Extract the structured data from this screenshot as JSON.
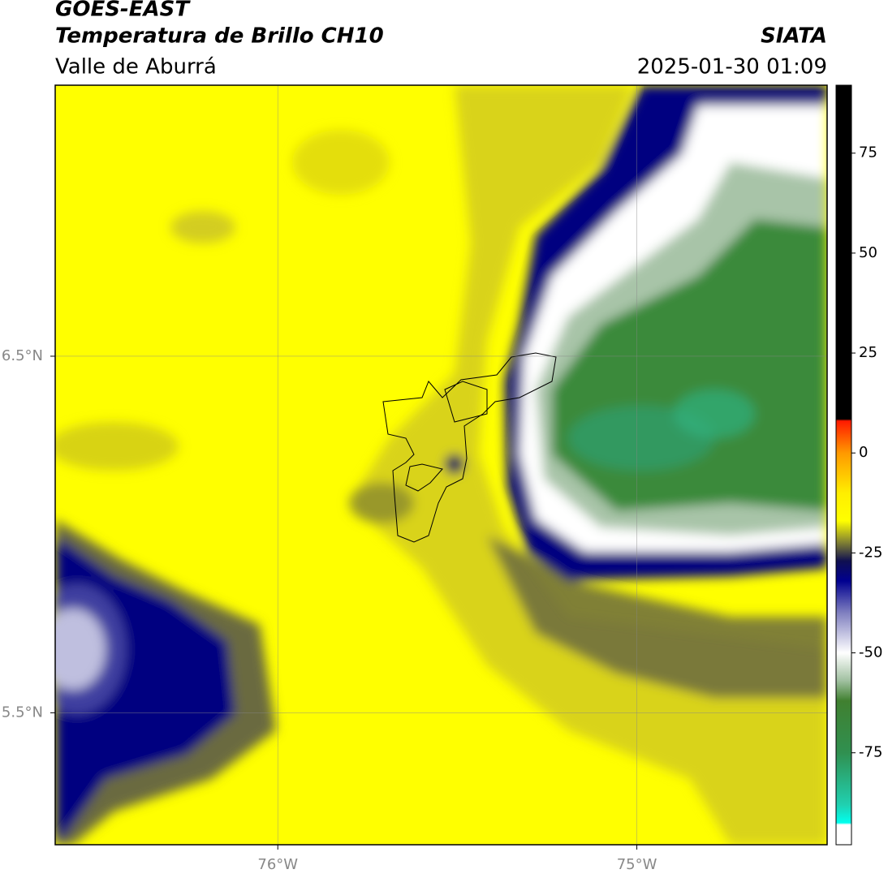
{
  "header": {
    "title": "GOES-EAST",
    "subtitle": "Temperatura de Brillo CH10",
    "region": "Valle de Aburrá",
    "source": "SIATA",
    "timestamp": "2025-01-30 01:09"
  },
  "map": {
    "xlim": [
      -76.62,
      -74.47
    ],
    "ylim": [
      5.13,
      7.26
    ],
    "xticks": [
      {
        "value": -76,
        "label": "76°W"
      },
      {
        "value": -75,
        "label": "75°W"
      }
    ],
    "yticks": [
      {
        "value": 6.5,
        "label": "6.5°N"
      },
      {
        "value": 5.5,
        "label": "5.5°N"
      }
    ],
    "grid": true
  },
  "colorbar": {
    "lim": [
      -98,
      92
    ],
    "ticks": [
      75,
      50,
      25,
      0,
      -25,
      -50,
      -75
    ],
    "stops": [
      {
        "value": 92,
        "color": "#000000"
      },
      {
        "value": 8.5,
        "color": "#000000"
      },
      {
        "value": 8,
        "color": "#ff1a00"
      },
      {
        "value": 0,
        "color": "#ff9900"
      },
      {
        "value": -10,
        "color": "#ffee00"
      },
      {
        "value": -17,
        "color": "#ffff00"
      },
      {
        "value": -22,
        "color": "#8a8a30"
      },
      {
        "value": -27,
        "color": "#101050"
      },
      {
        "value": -32,
        "color": "#000090"
      },
      {
        "value": -40,
        "color": "#8080c0"
      },
      {
        "value": -50,
        "color": "#ffffff"
      },
      {
        "value": -57,
        "color": "#a0c0a0"
      },
      {
        "value": -62,
        "color": "#408030"
      },
      {
        "value": -75,
        "color": "#309050"
      },
      {
        "value": -88,
        "color": "#20d0b0"
      },
      {
        "value": -92.5,
        "color": "#00ffee"
      },
      {
        "value": -93,
        "color": "#ffffff"
      },
      {
        "value": -98,
        "color": "#ffffff"
      }
    ]
  }
}
